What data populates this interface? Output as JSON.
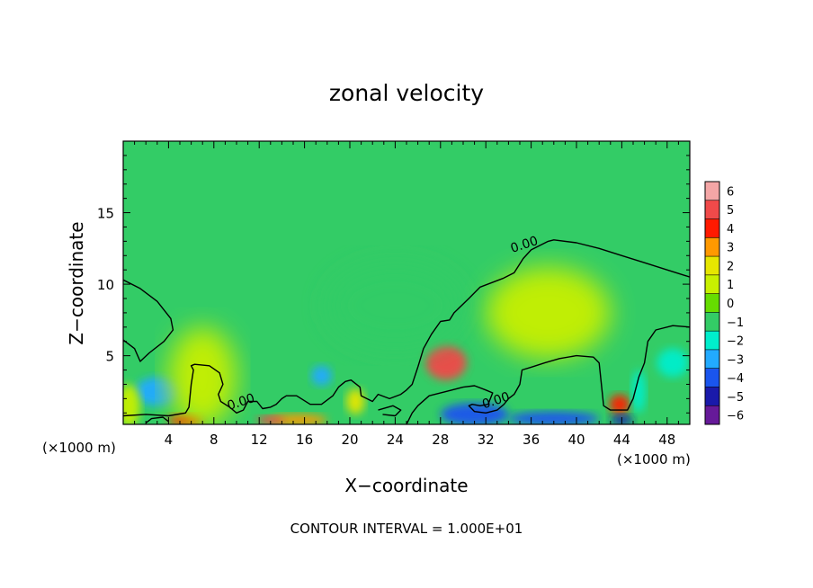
{
  "chart_data": {
    "type": "heatmap",
    "title": "zonal velocity",
    "xlabel": "X−coordinate",
    "ylabel": "Z−coordinate",
    "x_unit_left": "(×1000 m)",
    "x_unit_right": "(×1000 m)",
    "footer": "CONTOUR INTERVAL = 1.000E+01",
    "xlim": [
      0,
      50
    ],
    "ylim": [
      0.2,
      20
    ],
    "x_ticks": [
      4,
      8,
      12,
      16,
      20,
      24,
      28,
      32,
      36,
      40,
      44,
      48
    ],
    "x_tick_labels": [
      "4",
      "8",
      "12",
      "16",
      "20",
      "24",
      "28",
      "32",
      "36",
      "40",
      "44",
      "48"
    ],
    "y_ticks": [
      5,
      10,
      15
    ],
    "y_tick_labels": [
      "5",
      "10",
      "15"
    ],
    "colorbar": {
      "levels": [
        6,
        5,
        4,
        3,
        2,
        1,
        0,
        -1,
        -2,
        -3,
        -4,
        -5,
        -6
      ],
      "labels": [
        "6",
        "5",
        "4",
        "3",
        "2",
        "1",
        "0",
        "−1",
        "−2",
        "−3",
        "−4",
        "−5",
        "−6"
      ],
      "colors": [
        "#f4a6a6",
        "#f04a4a",
        "#ff1a00",
        "#ff9900",
        "#e6e600",
        "#c8f000",
        "#66dd00",
        "#33cc66",
        "#00eecc",
        "#22aaff",
        "#1a55ee",
        "#1a1aaa",
        "#661a99"
      ]
    },
    "contour_label": "0.00",
    "background_value": -1,
    "anomalies": [
      {
        "x": 28.5,
        "z": 4.5,
        "rx": 1.8,
        "rz": 1.2,
        "value": 4.5
      },
      {
        "x": 37.5,
        "z": 8.0,
        "rx": 5.5,
        "rz": 3.2,
        "value": 0.6
      },
      {
        "x": 43.8,
        "z": 1.6,
        "rx": 0.9,
        "rz": 0.7,
        "value": 3.5
      },
      {
        "x": 3.0,
        "z": 2.5,
        "rx": 2.0,
        "rz": 1.0,
        "value": -3.2
      },
      {
        "x": 17.5,
        "z": 3.6,
        "rx": 0.9,
        "rz": 0.7,
        "value": -2.8
      },
      {
        "x": 48.5,
        "z": 4.5,
        "rx": 1.4,
        "rz": 1.0,
        "value": -2.5
      },
      {
        "x": 24.0,
        "z": 8.5,
        "rx": 6.0,
        "rz": 3.0,
        "value": -1.4
      },
      {
        "x": 31.0,
        "z": 0.9,
        "rx": 3.0,
        "rz": 0.8,
        "value": -4.5
      },
      {
        "x": 38.0,
        "z": 0.6,
        "rx": 4.0,
        "rz": 0.5,
        "value": -4.0
      },
      {
        "x": 5.5,
        "z": 0.5,
        "rx": 1.5,
        "rz": 0.4,
        "value": 4.0
      },
      {
        "x": 15.5,
        "z": 0.5,
        "rx": 2.5,
        "rz": 0.4,
        "value": 3.0
      },
      {
        "x": 13.0,
        "z": 0.5,
        "rx": 1.2,
        "rz": 0.3,
        "value": 4.5
      },
      {
        "x": 20.5,
        "z": 1.8,
        "rx": 0.8,
        "rz": 0.9,
        "value": 2.0
      },
      {
        "x": 7.0,
        "z": 3.5,
        "rx": 3.0,
        "rz": 3.5,
        "value": 0.5
      },
      {
        "x": 0.5,
        "z": 1.5,
        "rx": 1.0,
        "rz": 1.5,
        "value": 1.2
      },
      {
        "x": 44.0,
        "z": 0.5,
        "rx": 1.0,
        "rz": 0.35,
        "value": -5.5
      },
      {
        "x": 45.5,
        "z": 2.5,
        "rx": 0.6,
        "rz": 1.5,
        "value": -2.2
      }
    ],
    "zero_contours": [
      [
        [
          0,
          10.3
        ],
        [
          1.5,
          9.7
        ],
        [
          3,
          8.8
        ],
        [
          4.2,
          7.6
        ],
        [
          4.4,
          6.8
        ],
        [
          3.6,
          6.0
        ],
        [
          2.3,
          5.2
        ],
        [
          1.5,
          4.6
        ],
        [
          1.0,
          5.5
        ],
        [
          0,
          6.1
        ]
      ],
      [
        [
          0,
          0.8
        ],
        [
          2,
          0.9
        ],
        [
          4,
          0.8
        ],
        [
          5.5,
          1.0
        ],
        [
          5.8,
          1.4
        ],
        [
          6.0,
          3.0
        ],
        [
          6.2,
          4.0
        ],
        [
          6.0,
          4.3
        ],
        [
          6.3,
          4.4
        ],
        [
          7.6,
          4.3
        ],
        [
          8.5,
          3.8
        ],
        [
          8.8,
          3.0
        ],
        [
          8.4,
          2.3
        ],
        [
          8.6,
          1.8
        ],
        [
          9.4,
          1.4
        ],
        [
          10.0,
          1.0
        ],
        [
          10.6,
          1.2
        ],
        [
          11.0,
          1.8
        ],
        [
          11.8,
          1.8
        ],
        [
          12.3,
          1.3
        ],
        [
          13.0,
          1.4
        ],
        [
          13.5,
          1.6
        ],
        [
          14.0,
          2.0
        ],
        [
          14.4,
          2.2
        ],
        [
          15.3,
          2.2
        ],
        [
          16.5,
          1.6
        ],
        [
          17.5,
          1.6
        ],
        [
          18.5,
          2.2
        ],
        [
          19.0,
          2.8
        ],
        [
          19.6,
          3.2
        ],
        [
          20.1,
          3.3
        ],
        [
          20.9,
          2.8
        ],
        [
          21.0,
          2.2
        ],
        [
          21.5,
          2.0
        ],
        [
          22.0,
          1.8
        ],
        [
          22.5,
          2.3
        ],
        [
          23.5,
          2.0
        ],
        [
          24.5,
          2.3
        ],
        [
          25.0,
          2.6
        ],
        [
          25.5,
          3.0
        ],
        [
          26.0,
          4.2
        ],
        [
          26.5,
          5.5
        ],
        [
          27.2,
          6.5
        ],
        [
          28.0,
          7.4
        ],
        [
          28.8,
          7.5
        ],
        [
          29.2,
          8.0
        ],
        [
          30.5,
          9.0
        ],
        [
          31.5,
          9.8
        ],
        [
          33.5,
          10.4
        ],
        [
          34.5,
          10.8
        ],
        [
          35.3,
          11.8
        ],
        [
          36.0,
          12.4
        ],
        [
          37.5,
          13.0
        ],
        [
          38.0,
          13.1
        ],
        [
          40,
          12.9
        ],
        [
          42,
          12.5
        ],
        [
          44,
          12.0
        ],
        [
          46,
          11.5
        ],
        [
          48,
          11.0
        ],
        [
          50,
          10.5
        ]
      ],
      [
        [
          25.0,
          0.2
        ],
        [
          25.5,
          1.0
        ],
        [
          26.0,
          1.5
        ],
        [
          27.0,
          2.2
        ],
        [
          28.5,
          2.5
        ],
        [
          30.0,
          2.8
        ],
        [
          31.0,
          2.9
        ],
        [
          32.0,
          2.6
        ],
        [
          32.6,
          2.4
        ],
        [
          32.2,
          1.6
        ],
        [
          31.5,
          1.5
        ],
        [
          30.8,
          1.6
        ],
        [
          30.5,
          1.5
        ],
        [
          31.0,
          1.1
        ],
        [
          32.0,
          1.0
        ],
        [
          33.0,
          1.2
        ],
        [
          33.6,
          1.6
        ],
        [
          34.0,
          2.0
        ],
        [
          34.5,
          2.3
        ],
        [
          35.0,
          3.0
        ],
        [
          35.2,
          4.0
        ],
        [
          36.0,
          4.2
        ],
        [
          37.2,
          4.5
        ],
        [
          38.5,
          4.8
        ],
        [
          40.0,
          5.0
        ],
        [
          41.5,
          4.9
        ],
        [
          42.0,
          4.5
        ],
        [
          42.2,
          3.0
        ],
        [
          42.4,
          1.5
        ],
        [
          43.0,
          1.2
        ],
        [
          44.5,
          1.2
        ],
        [
          45.0,
          2.0
        ],
        [
          45.5,
          3.5
        ],
        [
          46.0,
          4.5
        ],
        [
          46.3,
          6.0
        ],
        [
          47.0,
          6.8
        ],
        [
          48.5,
          7.1
        ],
        [
          50.0,
          7.0
        ]
      ],
      [
        [
          2.0,
          0.3
        ],
        [
          2.5,
          0.6
        ],
        [
          3.5,
          0.7
        ],
        [
          4.0,
          0.4
        ]
      ],
      [
        [
          22.5,
          1.2
        ],
        [
          23.8,
          1.5
        ],
        [
          24.5,
          1.2
        ],
        [
          24.0,
          0.8
        ],
        [
          22.9,
          0.9
        ]
      ]
    ],
    "contour_label_positions": [
      [
        35.5,
        12.5
      ],
      [
        10.5,
        1.5
      ],
      [
        33.0,
        1.6
      ]
    ]
  }
}
